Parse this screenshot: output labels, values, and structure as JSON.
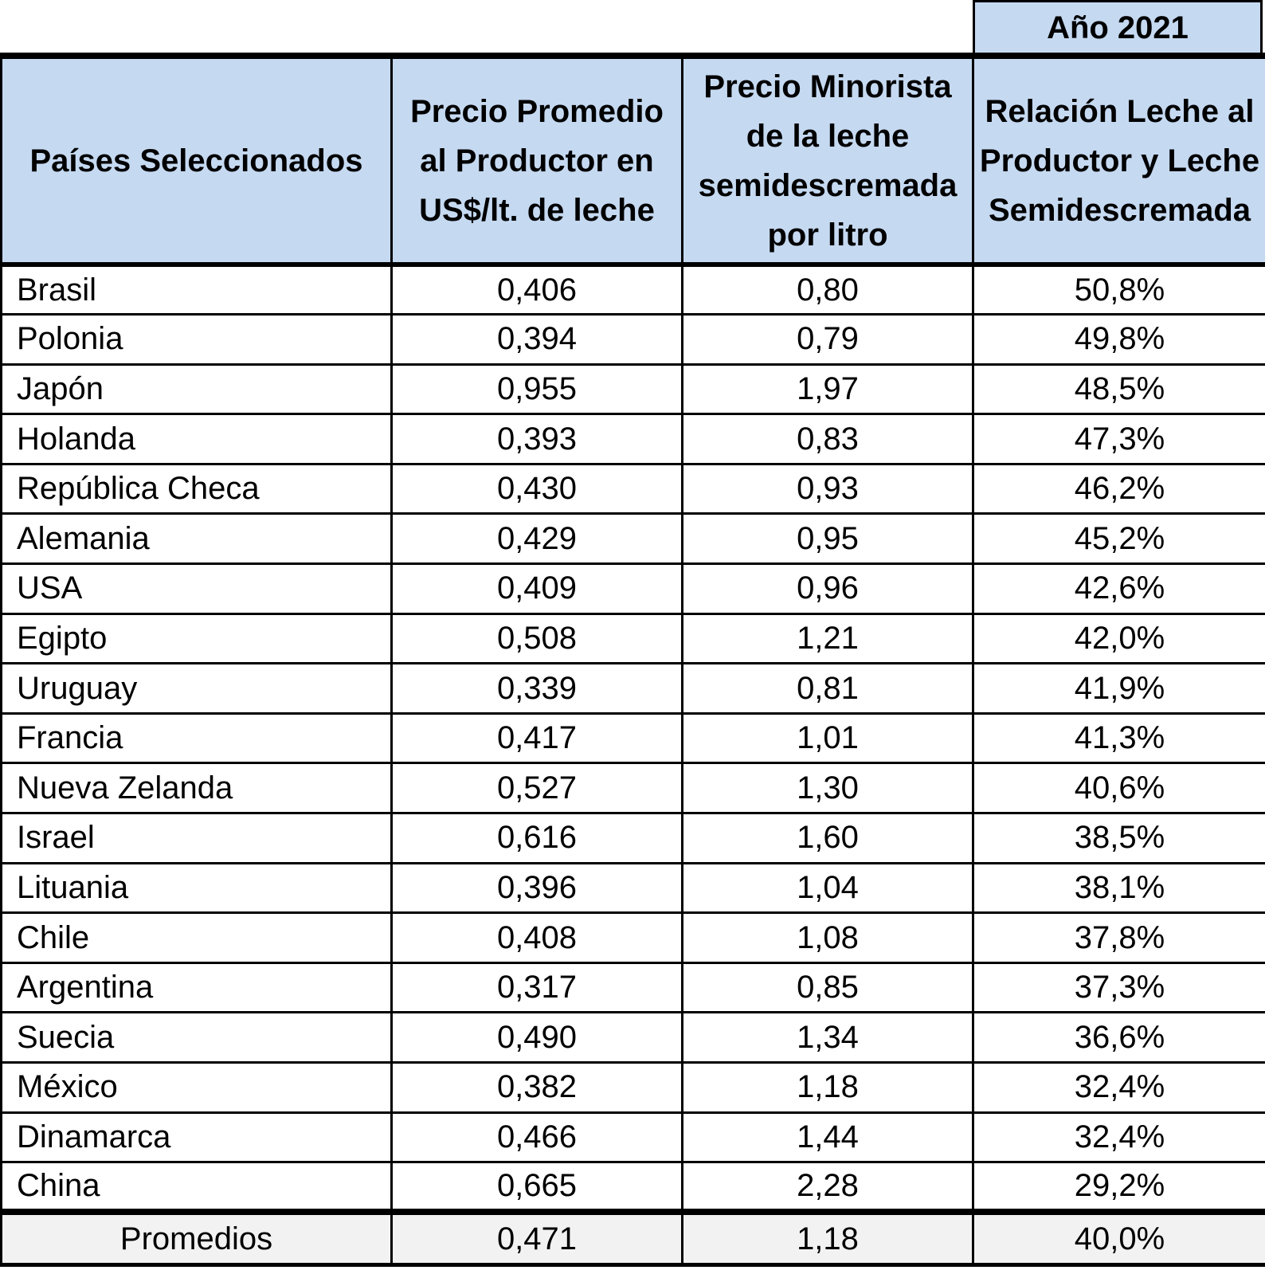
{
  "year_label": "Año 2021",
  "headers": {
    "country": "Países Seleccionados",
    "producer_price": "Precio Promedio al Productor en US$/lt. de leche",
    "retail_price": "Precio Minorista de la leche semidescremada por litro",
    "ratio": "Relación Leche al Productor y Leche Semidescremada"
  },
  "rows": [
    {
      "country": "Brasil",
      "producer_price": "0,406",
      "retail_price": "0,80",
      "ratio": "50,8%"
    },
    {
      "country": "Polonia",
      "producer_price": "0,394",
      "retail_price": "0,79",
      "ratio": "49,8%"
    },
    {
      "country": "Japón",
      "producer_price": "0,955",
      "retail_price": "1,97",
      "ratio": "48,5%"
    },
    {
      "country": "Holanda",
      "producer_price": "0,393",
      "retail_price": "0,83",
      "ratio": "47,3%"
    },
    {
      "country": "República Checa",
      "producer_price": "0,430",
      "retail_price": "0,93",
      "ratio": "46,2%"
    },
    {
      "country": "Alemania",
      "producer_price": "0,429",
      "retail_price": "0,95",
      "ratio": "45,2%"
    },
    {
      "country": "USA",
      "producer_price": "0,409",
      "retail_price": "0,96",
      "ratio": "42,6%"
    },
    {
      "country": "Egipto",
      "producer_price": "0,508",
      "retail_price": "1,21",
      "ratio": "42,0%"
    },
    {
      "country": "Uruguay",
      "producer_price": "0,339",
      "retail_price": "0,81",
      "ratio": "41,9%"
    },
    {
      "country": "Francia",
      "producer_price": "0,417",
      "retail_price": "1,01",
      "ratio": "41,3%"
    },
    {
      "country": "Nueva Zelanda",
      "producer_price": "0,527",
      "retail_price": "1,30",
      "ratio": "40,6%"
    },
    {
      "country": "Israel",
      "producer_price": "0,616",
      "retail_price": "1,60",
      "ratio": "38,5%"
    },
    {
      "country": "Lituania",
      "producer_price": "0,396",
      "retail_price": "1,04",
      "ratio": "38,1%"
    },
    {
      "country": "Chile",
      "producer_price": "0,408",
      "retail_price": "1,08",
      "ratio": "37,8%"
    },
    {
      "country": "Argentina",
      "producer_price": "0,317",
      "retail_price": "0,85",
      "ratio": "37,3%"
    },
    {
      "country": "Suecia",
      "producer_price": "0,490",
      "retail_price": "1,34",
      "ratio": "36,6%"
    },
    {
      "country": "México",
      "producer_price": "0,382",
      "retail_price": "1,18",
      "ratio": "32,4%"
    },
    {
      "country": "Dinamarca",
      "producer_price": "0,466",
      "retail_price": "1,44",
      "ratio": "32,4%"
    },
    {
      "country": "China",
      "producer_price": "0,665",
      "retail_price": "2,28",
      "ratio": "29,2%"
    }
  ],
  "footer": {
    "label": "Promedios",
    "producer_price": "0,471",
    "retail_price": "1,18",
    "ratio": "40,0%"
  }
}
